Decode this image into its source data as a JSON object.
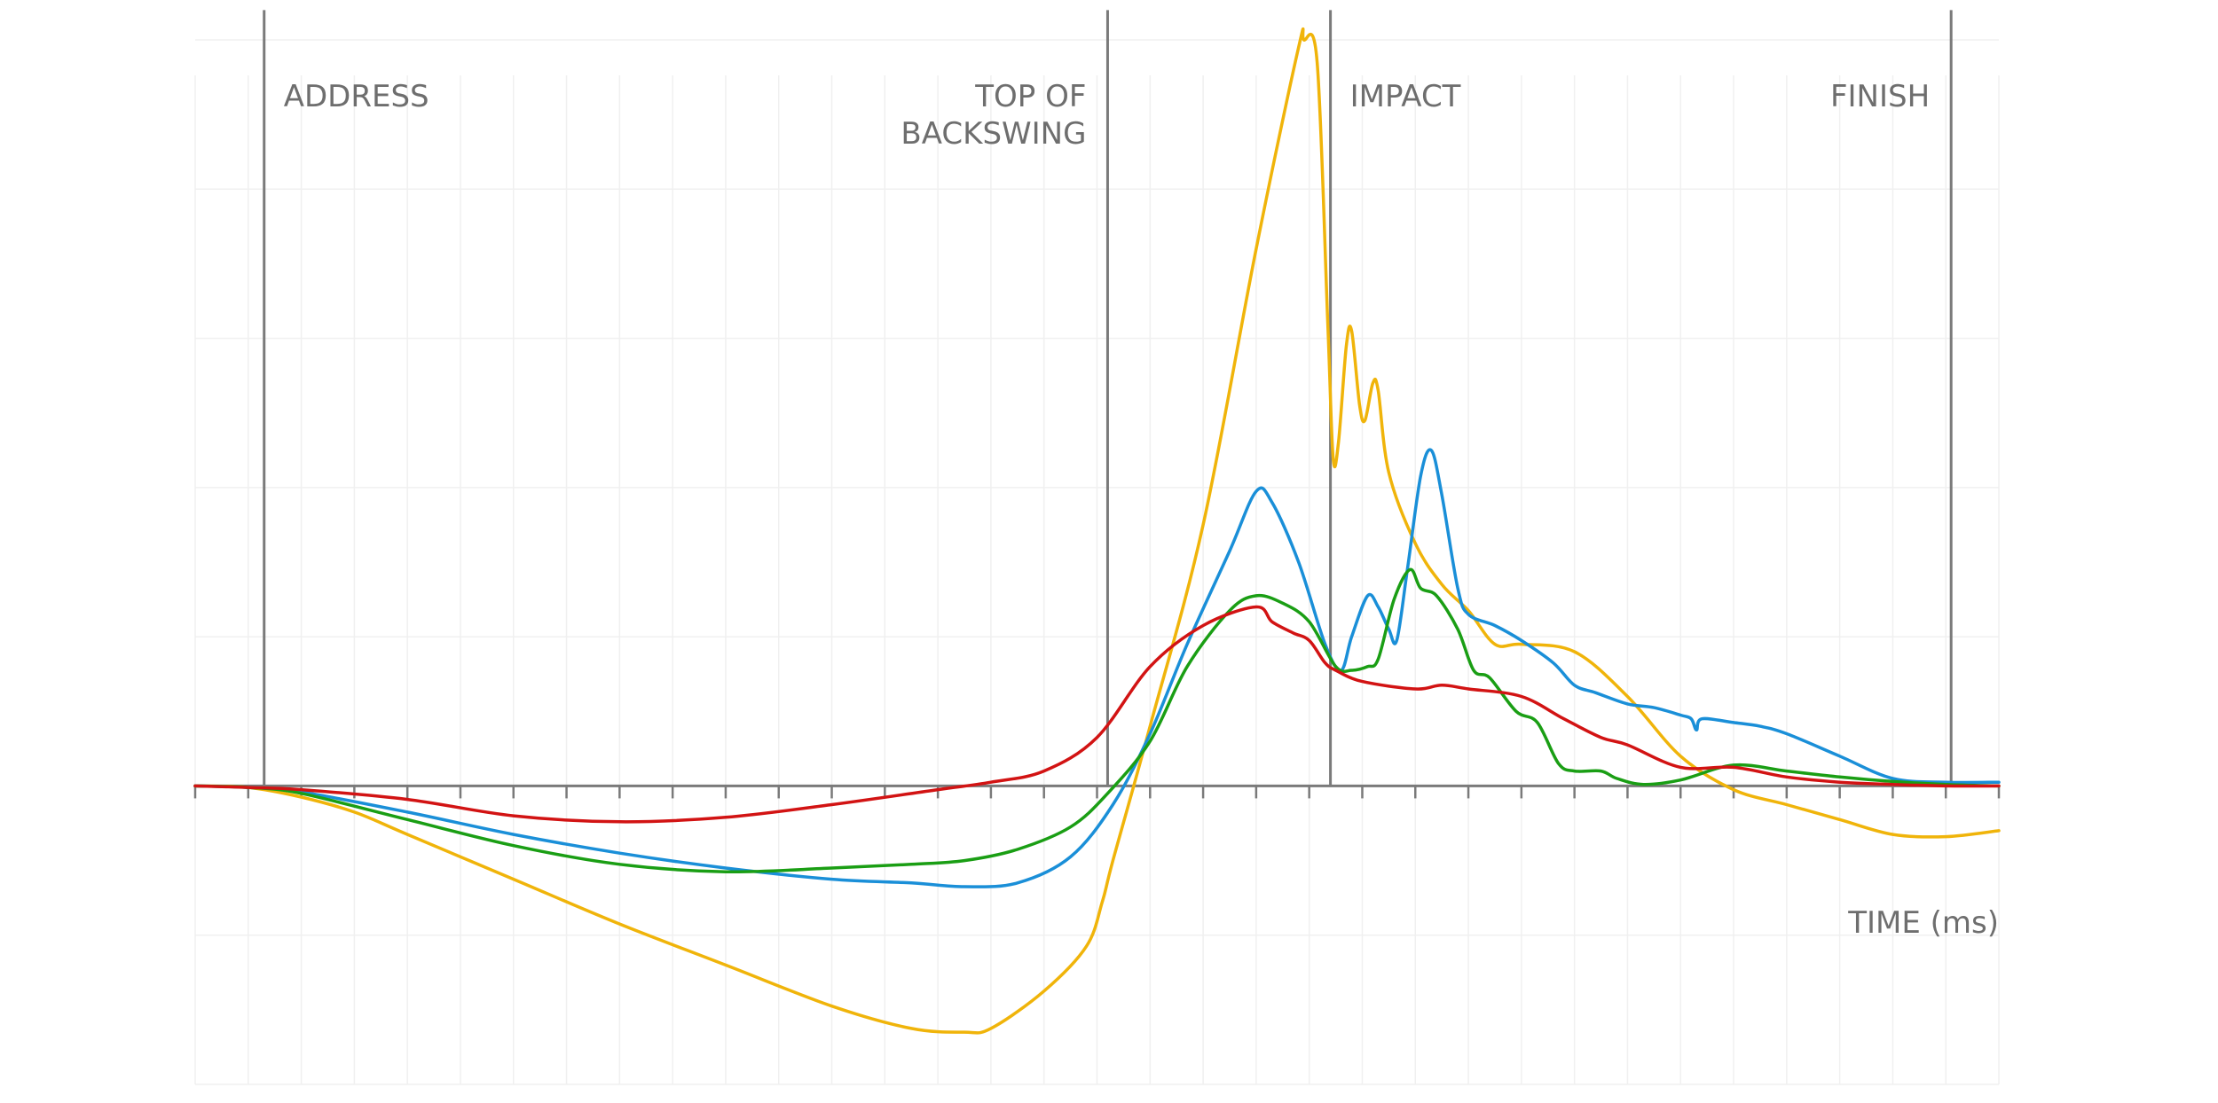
{
  "chart_data": {
    "type": "line",
    "title": "",
    "xlabel": "TIME (ms)",
    "ylabel": "",
    "xlim": [
      0,
      34
    ],
    "ylim": [
      -4,
      10
    ],
    "grid": true,
    "legend": "none",
    "phases": [
      {
        "label": "ADDRESS",
        "x": 1.3,
        "align": "right-of-line"
      },
      {
        "label": [
          "TOP OF",
          "BACKSWING"
        ],
        "x": 17.2,
        "align": "left-of-line"
      },
      {
        "label": "IMPACT",
        "x": 21.4,
        "align": "right-of-line"
      },
      {
        "label": "FINISH",
        "x": 33.1,
        "align": "left-of-line"
      }
    ],
    "series": [
      {
        "color": "#f0b40a",
        "points": [
          [
            0,
            0
          ],
          [
            1,
            -0.02
          ],
          [
            2,
            -0.15
          ],
          [
            3,
            -0.35
          ],
          [
            4,
            -0.65
          ],
          [
            6,
            -1.25
          ],
          [
            8,
            -1.85
          ],
          [
            10,
            -2.4
          ],
          [
            12,
            -2.95
          ],
          [
            13.5,
            -3.25
          ],
          [
            14.5,
            -3.3
          ],
          [
            15,
            -3.25
          ],
          [
            16,
            -2.75
          ],
          [
            16.8,
            -2.15
          ],
          [
            17.1,
            -1.55
          ],
          [
            17.3,
            -1.0
          ],
          [
            18,
            0.8
          ],
          [
            19,
            3.5
          ],
          [
            20,
            7.2
          ],
          [
            20.8,
            9.9
          ],
          [
            20.9,
            10.0
          ],
          [
            21.15,
            9.7
          ],
          [
            21.35,
            6.2
          ],
          [
            21.45,
            4.4
          ],
          [
            21.55,
            4.6
          ],
          [
            21.7,
            5.9
          ],
          [
            21.8,
            6.1
          ],
          [
            21.95,
            5.1
          ],
          [
            22.05,
            4.9
          ],
          [
            22.2,
            5.4
          ],
          [
            22.3,
            5.3
          ],
          [
            22.5,
            4.2
          ],
          [
            23,
            3.25
          ],
          [
            23.5,
            2.7
          ],
          [
            24,
            2.35
          ],
          [
            24.5,
            1.9
          ],
          [
            25,
            1.9
          ],
          [
            26,
            1.8
          ],
          [
            27,
            1.2
          ],
          [
            28,
            0.4
          ],
          [
            29,
            -0.05
          ],
          [
            30,
            -0.25
          ],
          [
            31,
            -0.45
          ],
          [
            32,
            -0.65
          ],
          [
            33,
            -0.68
          ],
          [
            34,
            -0.6
          ]
        ]
      },
      {
        "color": "#1a8fd8",
        "points": [
          [
            0,
            0
          ],
          [
            1,
            -0.02
          ],
          [
            2,
            -0.08
          ],
          [
            4,
            -0.35
          ],
          [
            6,
            -0.65
          ],
          [
            8,
            -0.9
          ],
          [
            10,
            -1.1
          ],
          [
            12,
            -1.25
          ],
          [
            13.5,
            -1.3
          ],
          [
            14.5,
            -1.35
          ],
          [
            15.5,
            -1.3
          ],
          [
            16.5,
            -0.95
          ],
          [
            17.3,
            -0.25
          ],
          [
            18,
            0.7
          ],
          [
            18.7,
            1.9
          ],
          [
            19.5,
            3.15
          ],
          [
            20,
            3.95
          ],
          [
            20.3,
            3.8
          ],
          [
            20.8,
            3.0
          ],
          [
            21.3,
            1.9
          ],
          [
            21.6,
            1.55
          ],
          [
            21.8,
            2.0
          ],
          [
            22.1,
            2.55
          ],
          [
            22.3,
            2.4
          ],
          [
            22.5,
            2.1
          ],
          [
            22.65,
            1.95
          ],
          [
            22.85,
            2.9
          ],
          [
            23.1,
            4.15
          ],
          [
            23.3,
            4.5
          ],
          [
            23.5,
            3.9
          ],
          [
            23.8,
            2.65
          ],
          [
            24,
            2.3
          ],
          [
            24.5,
            2.15
          ],
          [
            25,
            1.95
          ],
          [
            25.6,
            1.65
          ],
          [
            26,
            1.35
          ],
          [
            26.4,
            1.25
          ],
          [
            27,
            1.1
          ],
          [
            27.5,
            1.05
          ],
          [
            28,
            0.95
          ],
          [
            28.2,
            0.9
          ],
          [
            28.3,
            0.75
          ],
          [
            28.4,
            0.9
          ],
          [
            29,
            0.85
          ],
          [
            29.5,
            0.8
          ],
          [
            30,
            0.7
          ],
          [
            31,
            0.4
          ],
          [
            32,
            0.1
          ],
          [
            33,
            0.05
          ],
          [
            34,
            0.05
          ]
        ]
      },
      {
        "color": "#1a9e14",
        "points": [
          [
            0,
            0
          ],
          [
            1,
            -0.02
          ],
          [
            2,
            -0.1
          ],
          [
            4,
            -0.45
          ],
          [
            6,
            -0.8
          ],
          [
            8,
            -1.05
          ],
          [
            10,
            -1.15
          ],
          [
            12,
            -1.1
          ],
          [
            13.5,
            -1.05
          ],
          [
            14.5,
            -1.0
          ],
          [
            15.5,
            -0.85
          ],
          [
            16.5,
            -0.55
          ],
          [
            17.2,
            -0.1
          ],
          [
            18,
            0.6
          ],
          [
            18.7,
            1.6
          ],
          [
            19.5,
            2.35
          ],
          [
            20,
            2.55
          ],
          [
            20.5,
            2.45
          ],
          [
            21,
            2.2
          ],
          [
            21.5,
            1.6
          ],
          [
            21.8,
            1.55
          ],
          [
            22.1,
            1.6
          ],
          [
            22.3,
            1.7
          ],
          [
            22.6,
            2.5
          ],
          [
            22.9,
            2.9
          ],
          [
            23.1,
            2.65
          ],
          [
            23.4,
            2.55
          ],
          [
            23.8,
            2.1
          ],
          [
            24.1,
            1.55
          ],
          [
            24.4,
            1.45
          ],
          [
            24.9,
            1.0
          ],
          [
            25.3,
            0.85
          ],
          [
            25.7,
            0.3
          ],
          [
            26,
            0.2
          ],
          [
            26.5,
            0.2
          ],
          [
            26.8,
            0.1
          ],
          [
            27.3,
            0.02
          ],
          [
            28,
            0.08
          ],
          [
            29,
            0.28
          ],
          [
            30,
            0.2
          ],
          [
            31,
            0.12
          ],
          [
            32,
            0.06
          ],
          [
            33,
            0.02
          ],
          [
            34,
            0
          ]
        ]
      },
      {
        "color": "#d21313",
        "points": [
          [
            0,
            0
          ],
          [
            1,
            -0.02
          ],
          [
            2,
            -0.05
          ],
          [
            4,
            -0.18
          ],
          [
            6,
            -0.4
          ],
          [
            8,
            -0.48
          ],
          [
            10,
            -0.42
          ],
          [
            12,
            -0.25
          ],
          [
            14,
            -0.05
          ],
          [
            15,
            0.05
          ],
          [
            16,
            0.2
          ],
          [
            17,
            0.65
          ],
          [
            18,
            1.6
          ],
          [
            19,
            2.15
          ],
          [
            20,
            2.4
          ],
          [
            20.3,
            2.2
          ],
          [
            20.7,
            2.05
          ],
          [
            21,
            1.95
          ],
          [
            21.3,
            1.65
          ],
          [
            21.5,
            1.55
          ],
          [
            22,
            1.4
          ],
          [
            23,
            1.3
          ],
          [
            23.5,
            1.35
          ],
          [
            24,
            1.3
          ],
          [
            25,
            1.2
          ],
          [
            25.8,
            0.9
          ],
          [
            26.5,
            0.65
          ],
          [
            27,
            0.55
          ],
          [
            28,
            0.25
          ],
          [
            29,
            0.25
          ],
          [
            30,
            0.12
          ],
          [
            31,
            0.05
          ],
          [
            32,
            0.02
          ],
          [
            33,
            0
          ],
          [
            34,
            0
          ]
        ]
      }
    ]
  }
}
